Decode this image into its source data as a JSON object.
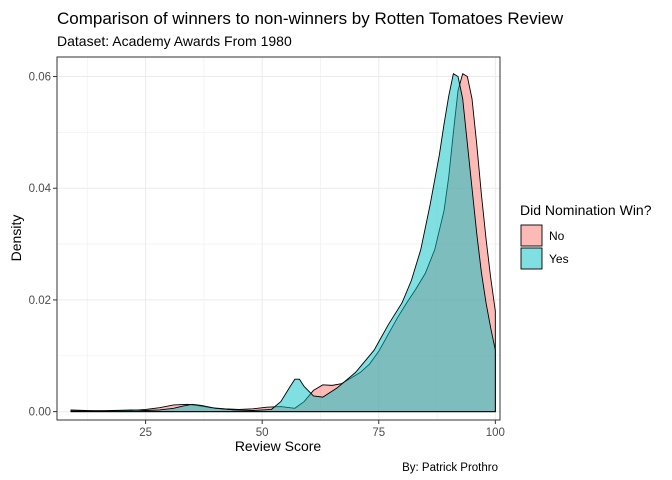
{
  "chart_data": {
    "type": "area",
    "title": "Comparison of winners to non-winners by Rotten Tomatoes Review",
    "subtitle": "Dataset: Academy Awards From 1980",
    "xlabel": "Review Score",
    "ylabel": "Density",
    "caption": "By: Patrick Prothro",
    "xlim": [
      6,
      101
    ],
    "ylim": [
      -0.0015,
      0.0635
    ],
    "x_ticks": [
      25,
      50,
      75,
      100
    ],
    "y_ticks": [
      0.0,
      0.02,
      0.04,
      0.06
    ],
    "x_tick_labels": [
      "25",
      "50",
      "75",
      "100"
    ],
    "y_tick_labels": [
      "0.00",
      "0.02",
      "0.04",
      "0.06"
    ],
    "grid": true,
    "legend": {
      "title": "Did Nomination Win?",
      "position": "right"
    },
    "series": [
      {
        "name": "No",
        "color": "#F8766D",
        "points": [
          [
            9,
            0.0003
          ],
          [
            12,
            0.0002
          ],
          [
            18,
            0.0001
          ],
          [
            22,
            0.0002
          ],
          [
            25,
            0.0004
          ],
          [
            28,
            0.0007
          ],
          [
            31,
            0.0012
          ],
          [
            34,
            0.0013
          ],
          [
            36,
            0.0011
          ],
          [
            39,
            0.0007
          ],
          [
            42,
            0.0005
          ],
          [
            45,
            0.0004
          ],
          [
            48,
            0.0005
          ],
          [
            51,
            0.0008
          ],
          [
            54,
            0.0009
          ],
          [
            57,
            0.0006
          ],
          [
            59,
            0.0018
          ],
          [
            61,
            0.0038
          ],
          [
            63,
            0.0048
          ],
          [
            65,
            0.0047
          ],
          [
            67,
            0.005
          ],
          [
            69,
            0.006
          ],
          [
            71,
            0.007
          ],
          [
            73,
            0.0085
          ],
          [
            75,
            0.0108
          ],
          [
            77,
            0.0138
          ],
          [
            79,
            0.0168
          ],
          [
            81,
            0.0195
          ],
          [
            83,
            0.022
          ],
          [
            85,
            0.0248
          ],
          [
            87,
            0.029
          ],
          [
            89,
            0.036
          ],
          [
            90,
            0.042
          ],
          [
            91,
            0.05
          ],
          [
            92,
            0.0575
          ],
          [
            93,
            0.0605
          ],
          [
            94,
            0.06
          ],
          [
            95,
            0.056
          ],
          [
            96,
            0.048
          ],
          [
            97,
            0.039
          ],
          [
            98,
            0.031
          ],
          [
            99,
            0.024
          ],
          [
            100,
            0.018
          ]
        ]
      },
      {
        "name": "Yes",
        "color": "#00BFC4",
        "points": [
          [
            9,
            0.0001
          ],
          [
            12,
            0.0001
          ],
          [
            18,
            0.0002
          ],
          [
            22,
            0.0003
          ],
          [
            25,
            0.0002
          ],
          [
            28,
            0.0003
          ],
          [
            31,
            0.0006
          ],
          [
            33,
            0.001
          ],
          [
            35,
            0.0013
          ],
          [
            37,
            0.0011
          ],
          [
            40,
            0.0006
          ],
          [
            44,
            0.0003
          ],
          [
            48,
            0.0002
          ],
          [
            52,
            0.0004
          ],
          [
            54,
            0.0018
          ],
          [
            56,
            0.0045
          ],
          [
            57,
            0.0058
          ],
          [
            58,
            0.0058
          ],
          [
            59,
            0.0045
          ],
          [
            61,
            0.0028
          ],
          [
            63,
            0.0026
          ],
          [
            66,
            0.0042
          ],
          [
            70,
            0.007
          ],
          [
            74,
            0.011
          ],
          [
            77,
            0.0155
          ],
          [
            80,
            0.0195
          ],
          [
            82,
            0.0235
          ],
          [
            84,
            0.029
          ],
          [
            86,
            0.037
          ],
          [
            88,
            0.046
          ],
          [
            89,
            0.0515
          ],
          [
            90,
            0.0565
          ],
          [
            91,
            0.0605
          ],
          [
            92,
            0.06
          ],
          [
            93,
            0.056
          ],
          [
            94,
            0.048
          ],
          [
            95,
            0.04
          ],
          [
            96,
            0.032
          ],
          [
            97,
            0.025
          ],
          [
            98,
            0.0195
          ],
          [
            99,
            0.015
          ],
          [
            100,
            0.011
          ]
        ]
      }
    ]
  }
}
